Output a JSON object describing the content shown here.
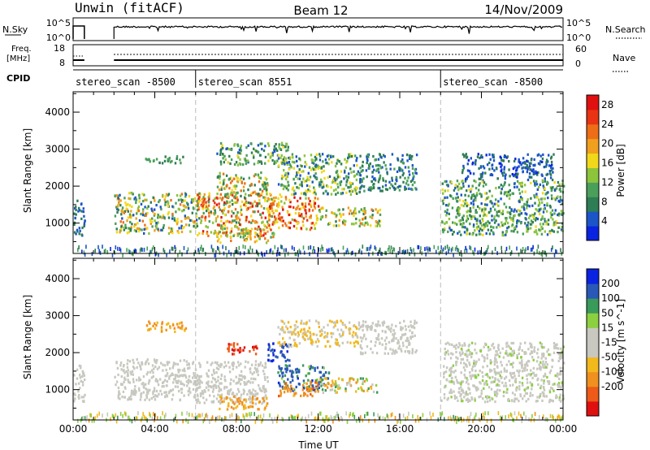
{
  "header": {
    "station": "Unwin (fitACF)",
    "beam": "Beam 12",
    "date": "14/Nov/2009"
  },
  "strips": {
    "nsky_label": "N.Sky",
    "nsky_ticks": [
      "10^5",
      "10^0"
    ],
    "nsky_right_ticks": [
      "10^5",
      "10^0"
    ],
    "nsearch_label": "N.Search",
    "freq_label_1": "Freq.",
    "freq_label_2": "[MHz]",
    "freq_ticks": [
      "18",
      "8"
    ],
    "nave_ticks": [
      "60",
      "0"
    ],
    "nave_label": "Nave",
    "cpid_label": "CPID",
    "cpid_segments": [
      {
        "label": "stereo_scan -8500",
        "start": 0,
        "end": 6
      },
      {
        "label": "stereo_scan 8551",
        "start": 6,
        "end": 18
      },
      {
        "label": "stereo_scan -8500",
        "start": 18,
        "end": 24
      }
    ]
  },
  "colors": {
    "power": [
      "#0a23e0",
      "#1c55c8",
      "#2e7d55",
      "#4aa05a",
      "#8cc43c",
      "#f2d81a",
      "#f0a01e",
      "#ee6e18",
      "#e83414",
      "#e01010"
    ],
    "velocity": [
      "#e01010",
      "#ee5a18",
      "#f0901e",
      "#f2b81c",
      "#c8c8c0",
      "#c8c8c0",
      "#8cd040",
      "#3a9a5a",
      "#2a58b8",
      "#0a23e0"
    ]
  },
  "chart_data": [
    {
      "type": "heatmap",
      "name": "power",
      "xlabel": "",
      "ylabel": "Slant Range [km]",
      "ylim": [
        180,
        4550
      ],
      "xlim": [
        0,
        24
      ],
      "yticks": [
        1000,
        2000,
        3000,
        4000
      ],
      "colorbar": {
        "label": "Power [dB]",
        "ticks": [
          4,
          8,
          12,
          16,
          20,
          24,
          28
        ],
        "range": [
          0,
          30
        ]
      },
      "scatter_regions": [
        {
          "x": [
            0.0,
            0.55
          ],
          "y": [
            700,
            1700
          ],
          "level": [
            3,
            9
          ]
        },
        {
          "x": [
            2.0,
            6.2
          ],
          "y": [
            750,
            1850
          ],
          "level": [
            4,
            22
          ]
        },
        {
          "x": [
            3.5,
            5.5
          ],
          "y": [
            2650,
            2850
          ],
          "level": [
            6,
            12
          ]
        },
        {
          "x": [
            6.0,
            9.8
          ],
          "y": [
            650,
            1850
          ],
          "level": [
            8,
            28
          ]
        },
        {
          "x": [
            7.0,
            9.5
          ],
          "y": [
            500,
            900
          ],
          "level": [
            10,
            22
          ]
        },
        {
          "x": [
            7.0,
            9.5
          ],
          "y": [
            1700,
            2400
          ],
          "level": [
            6,
            24
          ]
        },
        {
          "x": [
            7.0,
            10.5
          ],
          "y": [
            2600,
            3200
          ],
          "level": [
            4,
            16
          ]
        },
        {
          "x": [
            9.5,
            12.0
          ],
          "y": [
            850,
            1750
          ],
          "level": [
            14,
            30
          ]
        },
        {
          "x": [
            10.0,
            14.0
          ],
          "y": [
            1800,
            2900
          ],
          "level": [
            4,
            18
          ]
        },
        {
          "x": [
            12.0,
            15.0
          ],
          "y": [
            950,
            1450
          ],
          "level": [
            6,
            24
          ]
        },
        {
          "x": [
            14.0,
            16.8
          ],
          "y": [
            1900,
            2900
          ],
          "level": [
            3,
            12
          ]
        },
        {
          "x": [
            18.0,
            24.0
          ],
          "y": [
            700,
            2200
          ],
          "level": [
            4,
            16
          ]
        },
        {
          "x": [
            19.0,
            23.5
          ],
          "y": [
            2200,
            2900
          ],
          "level": [
            2,
            8
          ]
        }
      ],
      "noise_floor": {
        "y": [
          180,
          420
        ],
        "level": [
          2,
          12
        ]
      }
    },
    {
      "type": "heatmap",
      "name": "velocity",
      "xlabel": "Time UT",
      "ylabel": "Slant Range [km]",
      "ylim": [
        180,
        4550
      ],
      "xlim": [
        0,
        24
      ],
      "xticks": [
        "00:00",
        "04:00",
        "08:00",
        "12:00",
        "16:00",
        "20:00",
        "00:00"
      ],
      "yticks": [
        1000,
        2000,
        3000,
        4000
      ],
      "colorbar": {
        "label": "Velocity [m s^-1]",
        "ticks": [
          200,
          100,
          50,
          15,
          -15,
          -50,
          -100,
          -200
        ],
        "range": [
          -250,
          250
        ]
      },
      "scatter_regions": [
        {
          "x": [
            0.0,
            0.55
          ],
          "y": [
            700,
            1700
          ],
          "vel": [
            -15,
            15
          ]
        },
        {
          "x": [
            2.0,
            6.2
          ],
          "y": [
            750,
            1850
          ],
          "vel": [
            -15,
            15
          ]
        },
        {
          "x": [
            3.5,
            5.5
          ],
          "y": [
            2600,
            2900
          ],
          "vel": [
            -80,
            -30
          ]
        },
        {
          "x": [
            6.0,
            9.5
          ],
          "y": [
            650,
            1800
          ],
          "vel": [
            -15,
            15
          ]
        },
        {
          "x": [
            7.0,
            9.5
          ],
          "y": [
            500,
            850
          ],
          "vel": [
            -90,
            -30
          ]
        },
        {
          "x": [
            7.5,
            9.0
          ],
          "y": [
            1950,
            2300
          ],
          "vel": [
            -250,
            -150
          ]
        },
        {
          "x": [
            9.5,
            10.8
          ],
          "y": [
            1800,
            2300
          ],
          "vel": [
            120,
            250
          ]
        },
        {
          "x": [
            10.0,
            12.5
          ],
          "y": [
            1000,
            1700
          ],
          "vel": [
            40,
            220
          ]
        },
        {
          "x": [
            10.0,
            12.0
          ],
          "y": [
            850,
            1250
          ],
          "vel": [
            -120,
            -40
          ]
        },
        {
          "x": [
            12.0,
            15.0
          ],
          "y": [
            950,
            1350
          ],
          "vel": [
            -90,
            60
          ]
        },
        {
          "x": [
            10.0,
            14.0
          ],
          "y": [
            2200,
            2900
          ],
          "vel": [
            -50,
            15
          ]
        },
        {
          "x": [
            14.0,
            16.8
          ],
          "y": [
            2000,
            2900
          ],
          "vel": [
            -15,
            15
          ]
        },
        {
          "x": [
            18.0,
            24.0
          ],
          "y": [
            700,
            2300
          ],
          "vel": [
            -15,
            20
          ]
        }
      ],
      "noise_floor": {
        "y": [
          180,
          420
        ],
        "vel": [
          -60,
          60
        ]
      }
    }
  ],
  "nsky_series": {
    "x": [
      0.0,
      0.55,
      2.0,
      24.0
    ],
    "gaps": [
      [
        0.55,
        2.0
      ]
    ]
  },
  "freq_series": {
    "value": 10.5,
    "x": [
      0.0,
      0.55,
      2.0,
      24.0
    ]
  },
  "nave_series": {
    "value": 36
  }
}
